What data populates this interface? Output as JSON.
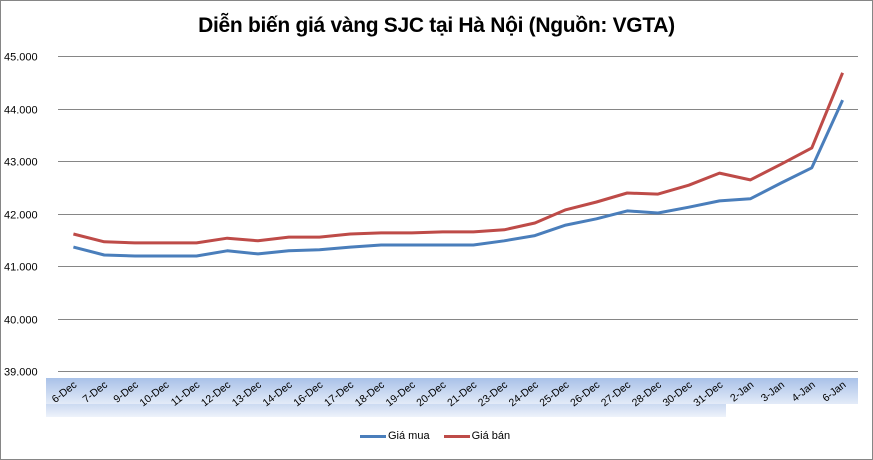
{
  "chart_data": {
    "type": "line",
    "title": "Diễn biến giá vàng SJC tại Hà Nội (Nguồn: VGTA)",
    "xlabel": "",
    "ylabel": "",
    "ylim": [
      39000,
      45000
    ],
    "y_ticks": [
      "39.000",
      "40.000",
      "41.000",
      "42.000",
      "43.000",
      "44.000",
      "45.000"
    ],
    "grid": true,
    "legend_position": "bottom",
    "categories": [
      "6-Dec",
      "7-Dec",
      "9-Dec",
      "10-Dec",
      "11-Dec",
      "12-Dec",
      "13-Dec",
      "14-Dec",
      "16-Dec",
      "17-Dec",
      "18-Dec",
      "19-Dec",
      "20-Dec",
      "21-Dec",
      "23-Dec",
      "24-Dec",
      "25-Dec",
      "26-Dec",
      "27-Dec",
      "28-Dec",
      "30-Dec",
      "31-Dec",
      "2-Jan",
      "3-Jan",
      "4-Jan",
      "6-Jan"
    ],
    "series": [
      {
        "name": "Giá mua",
        "color": "#4a7ebb",
        "values": [
          41360,
          41210,
          41190,
          41190,
          41190,
          41290,
          41230,
          41290,
          41310,
          41360,
          41400,
          41400,
          41400,
          41400,
          41480,
          41580,
          41780,
          41900,
          42050,
          42010,
          42120,
          42240,
          42280,
          42580,
          42870,
          44160
        ]
      },
      {
        "name": "Giá bán",
        "color": "#be4b48",
        "values": [
          41610,
          41460,
          41440,
          41440,
          41440,
          41530,
          41480,
          41550,
          41550,
          41610,
          41630,
          41630,
          41650,
          41650,
          41690,
          41820,
          42070,
          42220,
          42390,
          42370,
          42540,
          42770,
          42640,
          42940,
          43250,
          44680
        ]
      }
    ]
  },
  "legend": {
    "items": [
      {
        "label": "Giá mua",
        "color": "#4a7ebb"
      },
      {
        "label": "Giá bán",
        "color": "#be4b48"
      }
    ]
  }
}
